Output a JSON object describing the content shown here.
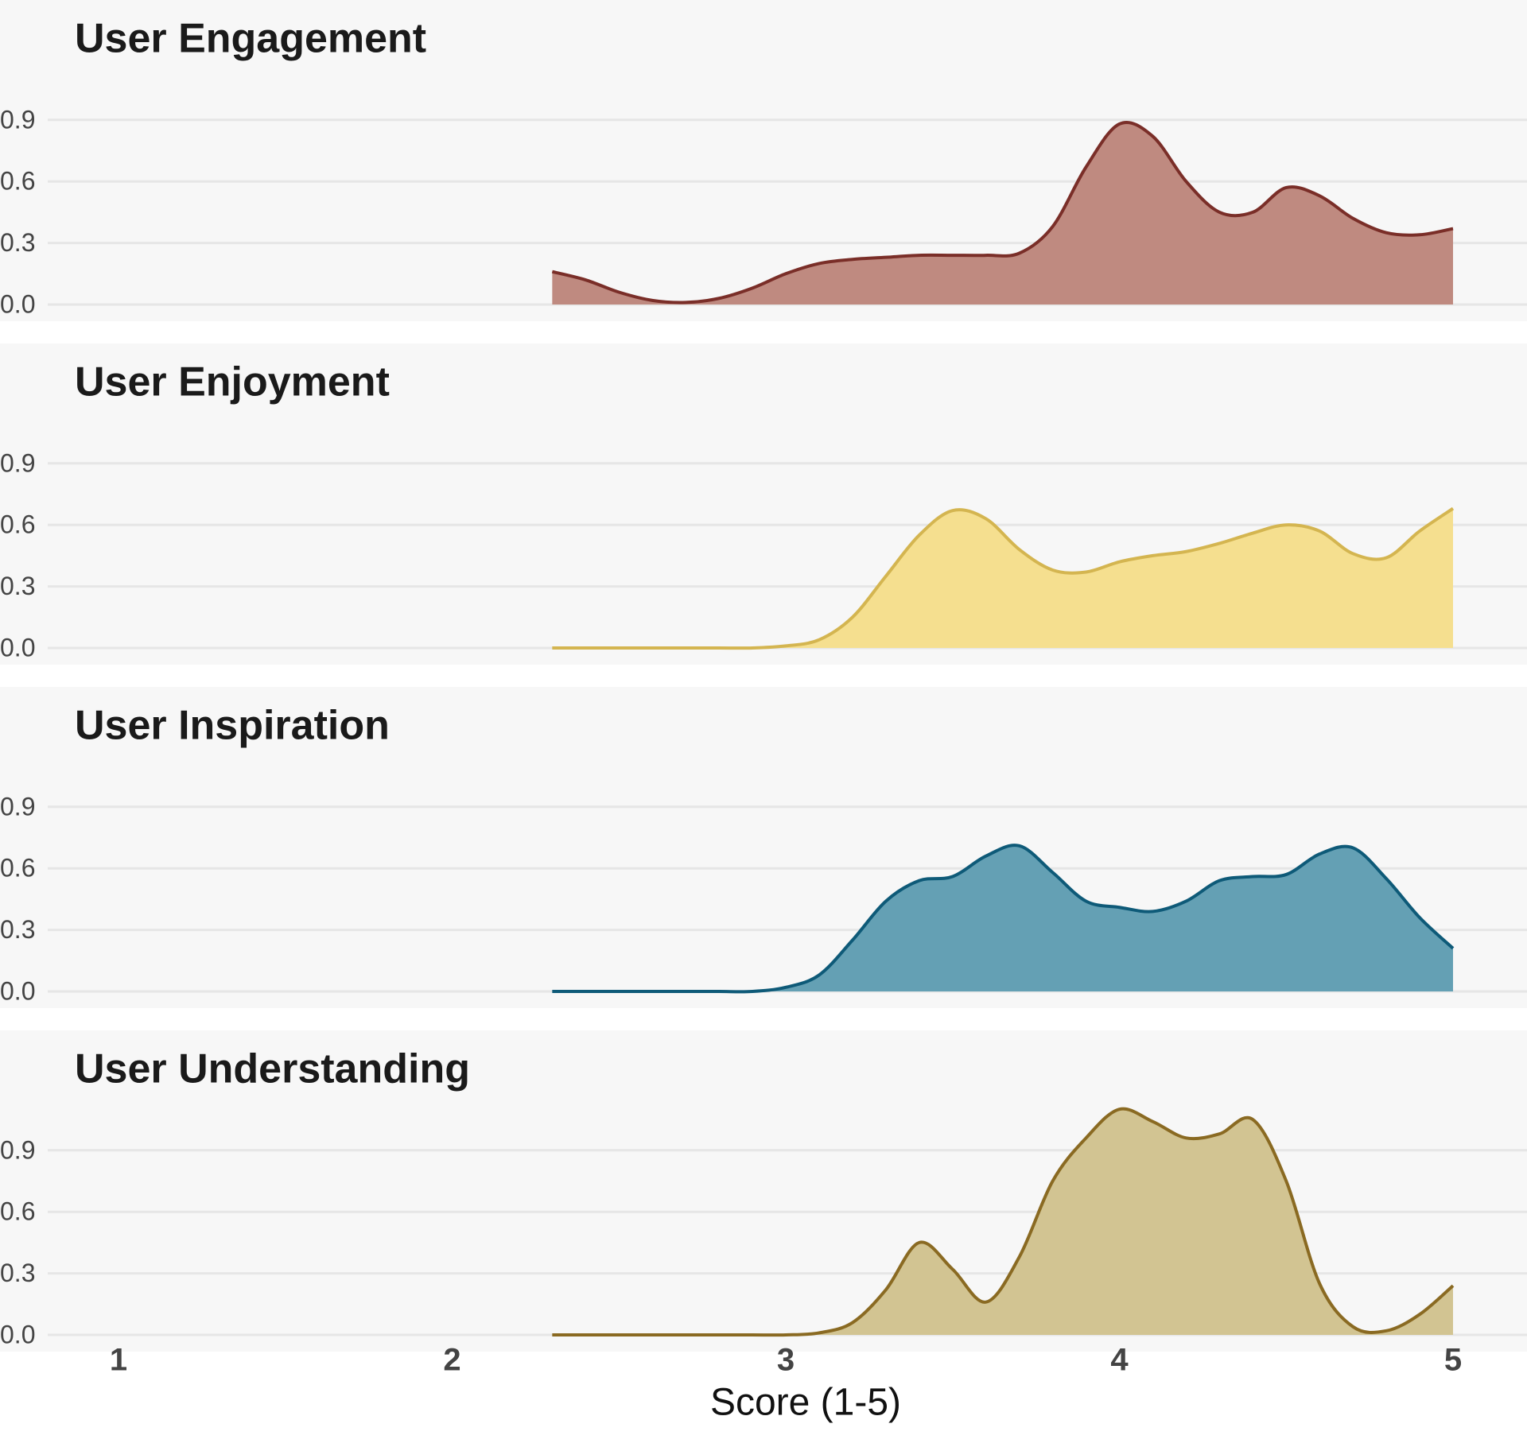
{
  "chart_data": [
    {
      "type": "area",
      "title": "User Engagement",
      "color": "#7a2e28",
      "fill": "#bf8a80",
      "grid": true,
      "x": [
        2.3,
        2.4,
        2.5,
        2.6,
        2.7,
        2.8,
        2.9,
        3.0,
        3.1,
        3.2,
        3.3,
        3.4,
        3.5,
        3.6,
        3.7,
        3.8,
        3.9,
        4.0,
        4.1,
        4.2,
        4.3,
        4.4,
        4.5,
        4.6,
        4.7,
        4.8,
        4.9,
        5.0
      ],
      "values": [
        0.16,
        0.12,
        0.06,
        0.02,
        0.01,
        0.03,
        0.08,
        0.15,
        0.2,
        0.22,
        0.23,
        0.24,
        0.24,
        0.24,
        0.25,
        0.38,
        0.67,
        0.88,
        0.82,
        0.6,
        0.45,
        0.45,
        0.57,
        0.53,
        0.42,
        0.35,
        0.34,
        0.37
      ],
      "xlim": [
        1,
        5
      ],
      "ylim": [
        0,
        1.2
      ],
      "yticks": [
        {
          "value": 0,
          "label": "0.0"
        },
        0.3,
        0.6,
        0.9
      ]
    },
    {
      "type": "area",
      "title": "User Enjoyment",
      "color": "#d4b550",
      "fill": "#f5df8f",
      "grid": true,
      "x": [
        2.3,
        2.4,
        2.5,
        2.6,
        2.7,
        2.8,
        2.9,
        3.0,
        3.1,
        3.2,
        3.3,
        3.4,
        3.5,
        3.6,
        3.7,
        3.8,
        3.9,
        4.0,
        4.1,
        4.2,
        4.3,
        4.4,
        4.5,
        4.6,
        4.7,
        4.8,
        4.9,
        5.0
      ],
      "values": [
        0,
        0,
        0,
        0,
        0,
        0,
        0,
        0.01,
        0.04,
        0.15,
        0.35,
        0.55,
        0.67,
        0.63,
        0.48,
        0.38,
        0.37,
        0.42,
        0.45,
        0.47,
        0.51,
        0.56,
        0.6,
        0.57,
        0.46,
        0.44,
        0.57,
        0.68
      ],
      "xlim": [
        1,
        5
      ],
      "ylim": [
        0,
        1.2
      ],
      "yticks": [
        {
          "value": 0,
          "label": "0.0"
        },
        0.3,
        0.6,
        0.9
      ]
    },
    {
      "type": "area",
      "title": "User Inspiration",
      "color": "#0e5a78",
      "fill": "#64a0b4",
      "grid": true,
      "x": [
        2.3,
        2.4,
        2.5,
        2.6,
        2.7,
        2.8,
        2.9,
        3.0,
        3.1,
        3.2,
        3.3,
        3.4,
        3.5,
        3.6,
        3.7,
        3.8,
        3.9,
        4.0,
        4.1,
        4.2,
        4.3,
        4.4,
        4.5,
        4.6,
        4.7,
        4.8,
        4.9,
        5.0
      ],
      "values": [
        0,
        0,
        0,
        0,
        0,
        0,
        0,
        0.02,
        0.08,
        0.25,
        0.44,
        0.54,
        0.56,
        0.66,
        0.71,
        0.58,
        0.44,
        0.41,
        0.39,
        0.44,
        0.54,
        0.56,
        0.57,
        0.67,
        0.7,
        0.55,
        0.36,
        0.21
      ],
      "xlim": [
        1,
        5
      ],
      "ylim": [
        0,
        1.2
      ],
      "yticks": [
        {
          "value": 0,
          "label": "0.0"
        },
        0.3,
        0.6,
        0.9
      ]
    },
    {
      "type": "area",
      "title": "User Understanding",
      "color": "#8a6a22",
      "fill": "#d2c492",
      "grid": true,
      "x": [
        2.3,
        2.4,
        2.5,
        2.6,
        2.7,
        2.8,
        2.9,
        3.0,
        3.1,
        3.2,
        3.3,
        3.4,
        3.5,
        3.6,
        3.7,
        3.8,
        3.9,
        4.0,
        4.1,
        4.2,
        4.3,
        4.4,
        4.5,
        4.6,
        4.7,
        4.8,
        4.9,
        5.0
      ],
      "values": [
        0,
        0,
        0,
        0,
        0,
        0,
        0,
        0,
        0.01,
        0.06,
        0.22,
        0.45,
        0.32,
        0.16,
        0.38,
        0.75,
        0.96,
        1.1,
        1.04,
        0.96,
        0.98,
        1.05,
        0.75,
        0.25,
        0.04,
        0.02,
        0.1,
        0.24
      ],
      "xlim": [
        1,
        5
      ],
      "ylim": [
        0,
        1.2
      ],
      "yticks": [
        {
          "value": 0,
          "label": "0.0"
        },
        0.3,
        0.6,
        0.9
      ],
      "xticks": [
        1,
        2,
        3,
        4,
        5
      ],
      "xlabel": "Score (1-5)"
    }
  ]
}
